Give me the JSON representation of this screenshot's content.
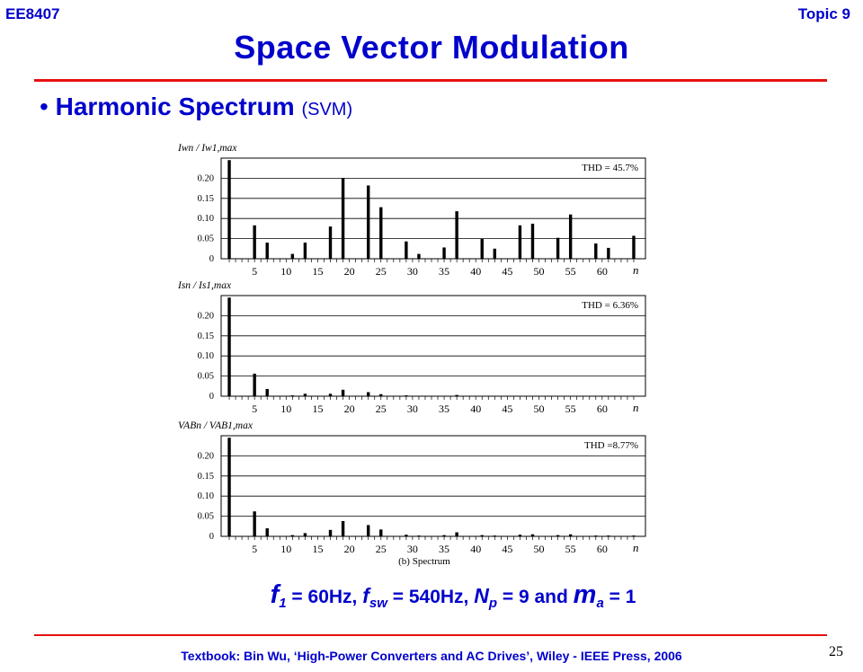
{
  "header": {
    "course": "EE8407",
    "topic": "Topic 9"
  },
  "title": "Space Vector Modulation",
  "bullet": {
    "symbol": "•",
    "main": "Harmonic Spectrum",
    "sub": "(SVM)"
  },
  "chart_data": [
    {
      "type": "bar",
      "ylabel": "Iwn / Iw1,max",
      "xlabel": "n",
      "annotation": "THD = 45.7%",
      "ylim": [
        0,
        0.25
      ],
      "yticks": [
        "0",
        "0.05",
        "0.10",
        "0.15",
        "0.20"
      ],
      "xticks": [
        "5",
        "10",
        "15",
        "20",
        "25",
        "30",
        "35",
        "40",
        "45",
        "50",
        "55",
        "60"
      ],
      "x": [
        1,
        5,
        7,
        11,
        13,
        17,
        19,
        23,
        25,
        29,
        31,
        35,
        37,
        41,
        43,
        47,
        49,
        53,
        55,
        59,
        61,
        65
      ],
      "values": [
        0.245,
        0.083,
        0.04,
        0.012,
        0.04,
        0.08,
        0.2,
        0.182,
        0.128,
        0.043,
        0.012,
        0.028,
        0.118,
        0.05,
        0.025,
        0.083,
        0.087,
        0.052,
        0.11,
        0.038,
        0.027,
        0.057
      ]
    },
    {
      "type": "bar",
      "ylabel": "Isn / Is1,max",
      "xlabel": "n",
      "annotation": "THD = 6.36%",
      "ylim": [
        0,
        0.25
      ],
      "yticks": [
        "0",
        "0.05",
        "0.10",
        "0.15",
        "0.20"
      ],
      "xticks": [
        "5",
        "10",
        "15",
        "20",
        "25",
        "30",
        "35",
        "40",
        "45",
        "50",
        "55",
        "60"
      ],
      "x": [
        1,
        5,
        7,
        11,
        13,
        17,
        19,
        23,
        25,
        29,
        31,
        35,
        37,
        41,
        43,
        47,
        49,
        53,
        55,
        59,
        61,
        65
      ],
      "values": [
        0.245,
        0.056,
        0.018,
        0.002,
        0.006,
        0.006,
        0.016,
        0.01,
        0.005,
        0.002,
        0.001,
        0.001,
        0.003,
        0.001,
        0.001,
        0.001,
        0.001,
        0.001,
        0.001,
        0.001,
        0.001,
        0.001
      ]
    },
    {
      "type": "bar",
      "ylabel": "VABn / VAB1,max",
      "xlabel": "n",
      "annotation": "THD =8.77%",
      "caption": "(b)  Spectrum",
      "ylim": [
        0,
        0.25
      ],
      "yticks": [
        "0",
        "0.05",
        "0.10",
        "0.15",
        "0.20"
      ],
      "xticks": [
        "5",
        "10",
        "15",
        "20",
        "25",
        "30",
        "35",
        "40",
        "45",
        "50",
        "55",
        "60"
      ],
      "x": [
        1,
        5,
        7,
        11,
        13,
        17,
        19,
        23,
        25,
        29,
        31,
        35,
        37,
        41,
        43,
        47,
        49,
        53,
        55,
        59,
        61,
        65
      ],
      "values": [
        0.245,
        0.062,
        0.02,
        0.003,
        0.008,
        0.016,
        0.038,
        0.028,
        0.017,
        0.004,
        0.002,
        0.003,
        0.01,
        0.003,
        0.002,
        0.004,
        0.005,
        0.003,
        0.005,
        0.002,
        0.002,
        0.002
      ]
    }
  ],
  "params": {
    "f1_sym": "f",
    "f1_sub": "1",
    "f1_val": " = 60Hz,  ",
    "fsw_sym": "f",
    "fsw_sub": "sw",
    "fsw_val": " = 540Hz, ",
    "np_sym": "N",
    "np_sub": "p",
    "np_val": " = 9 and ",
    "ma_sym": "m",
    "ma_sub": "a",
    "ma_val": " = 1"
  },
  "footer": "Textbook: Bin Wu, ‘High-Power Converters and AC Drives’, Wiley - IEEE Press, 2006",
  "page_number": "25",
  "colors": {
    "accent": "#0000cc",
    "rule": "#e81010",
    "bars": "#000000"
  }
}
